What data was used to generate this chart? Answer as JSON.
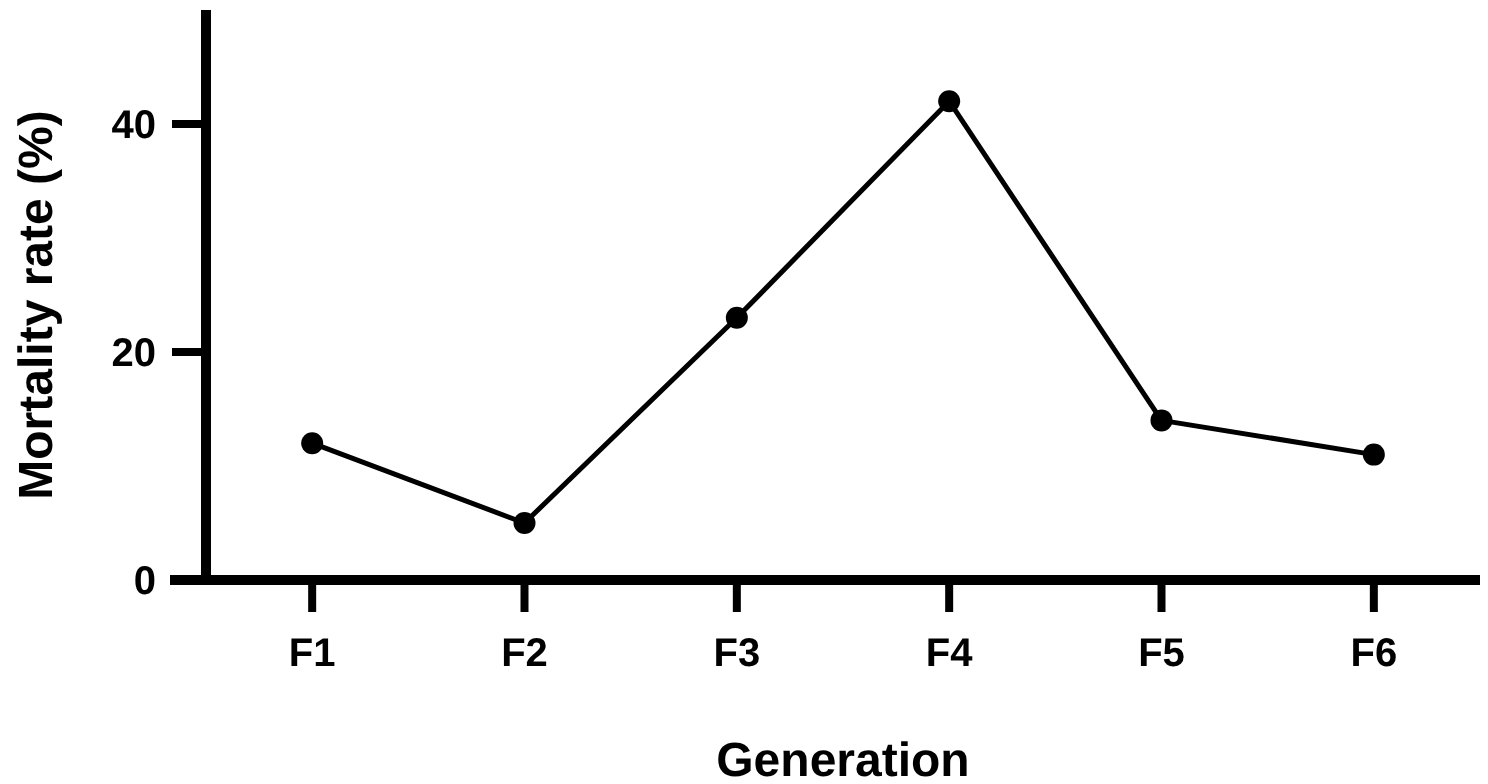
{
  "chart_data": {
    "type": "line",
    "xlabel": "Generation",
    "ylabel": "Mortality rate (%)",
    "categories": [
      "F1",
      "F2",
      "F3",
      "F4",
      "F5",
      "F6"
    ],
    "series": [
      {
        "color": "#000000",
        "values": [
          12,
          5,
          23,
          42,
          14,
          11
        ]
      }
    ],
    "ylim": [
      0,
      50
    ],
    "yticks": [
      0,
      20,
      40
    ],
    "marker": "circle",
    "line_style": "solid",
    "grid": false
  }
}
